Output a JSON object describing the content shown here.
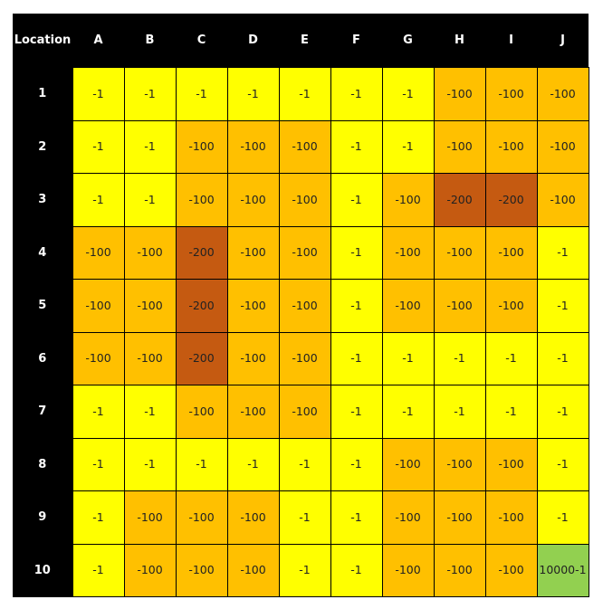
{
  "header": {
    "corner": "Location",
    "columns": [
      "A",
      "B",
      "C",
      "D",
      "E",
      "F",
      "G",
      "H",
      "I",
      "J"
    ]
  },
  "rows": [
    {
      "label": "1",
      "cells": [
        "-1",
        "-1",
        "-1",
        "-1",
        "-1",
        "-1",
        "-1",
        "-100",
        "-100",
        "-100"
      ]
    },
    {
      "label": "2",
      "cells": [
        "-1",
        "-1",
        "-100",
        "-100",
        "-100",
        "-1",
        "-1",
        "-100",
        "-100",
        "-100"
      ]
    },
    {
      "label": "3",
      "cells": [
        "-1",
        "-1",
        "-100",
        "-100",
        "-100",
        "-1",
        "-100",
        "-200",
        "-200",
        "-100"
      ]
    },
    {
      "label": "4",
      "cells": [
        "-100",
        "-100",
        "-200",
        "-100",
        "-100",
        "-1",
        "-100",
        "-100",
        "-100",
        "-1"
      ]
    },
    {
      "label": "5",
      "cells": [
        "-100",
        "-100",
        "-200",
        "-100",
        "-100",
        "-1",
        "-100",
        "-100",
        "-100",
        "-1"
      ]
    },
    {
      "label": "6",
      "cells": [
        "-100",
        "-100",
        "-200",
        "-100",
        "-100",
        "-1",
        "-1",
        "-1",
        "-1",
        "-1"
      ]
    },
    {
      "label": "7",
      "cells": [
        "-1",
        "-1",
        "-100",
        "-100",
        "-100",
        "-1",
        "-1",
        "-1",
        "-1",
        "-1"
      ]
    },
    {
      "label": "8",
      "cells": [
        "-1",
        "-1",
        "-1",
        "-1",
        "-1",
        "-1",
        "-100",
        "-100",
        "-100",
        "-1"
      ]
    },
    {
      "label": "9",
      "cells": [
        "-1",
        "-100",
        "-100",
        "-100",
        "-1",
        "-1",
        "-100",
        "-100",
        "-100",
        "-1"
      ]
    },
    {
      "label": "10",
      "cells": [
        "-1",
        "-100",
        "-100",
        "-100",
        "-1",
        "-1",
        "-100",
        "-100",
        "-100",
        "10000-1"
      ]
    }
  ],
  "colors": {
    "-1": "#ffff00",
    "-100": "#ffc000",
    "-200": "#c55a11",
    "goal": "#92d050",
    "header": "#000000"
  }
}
